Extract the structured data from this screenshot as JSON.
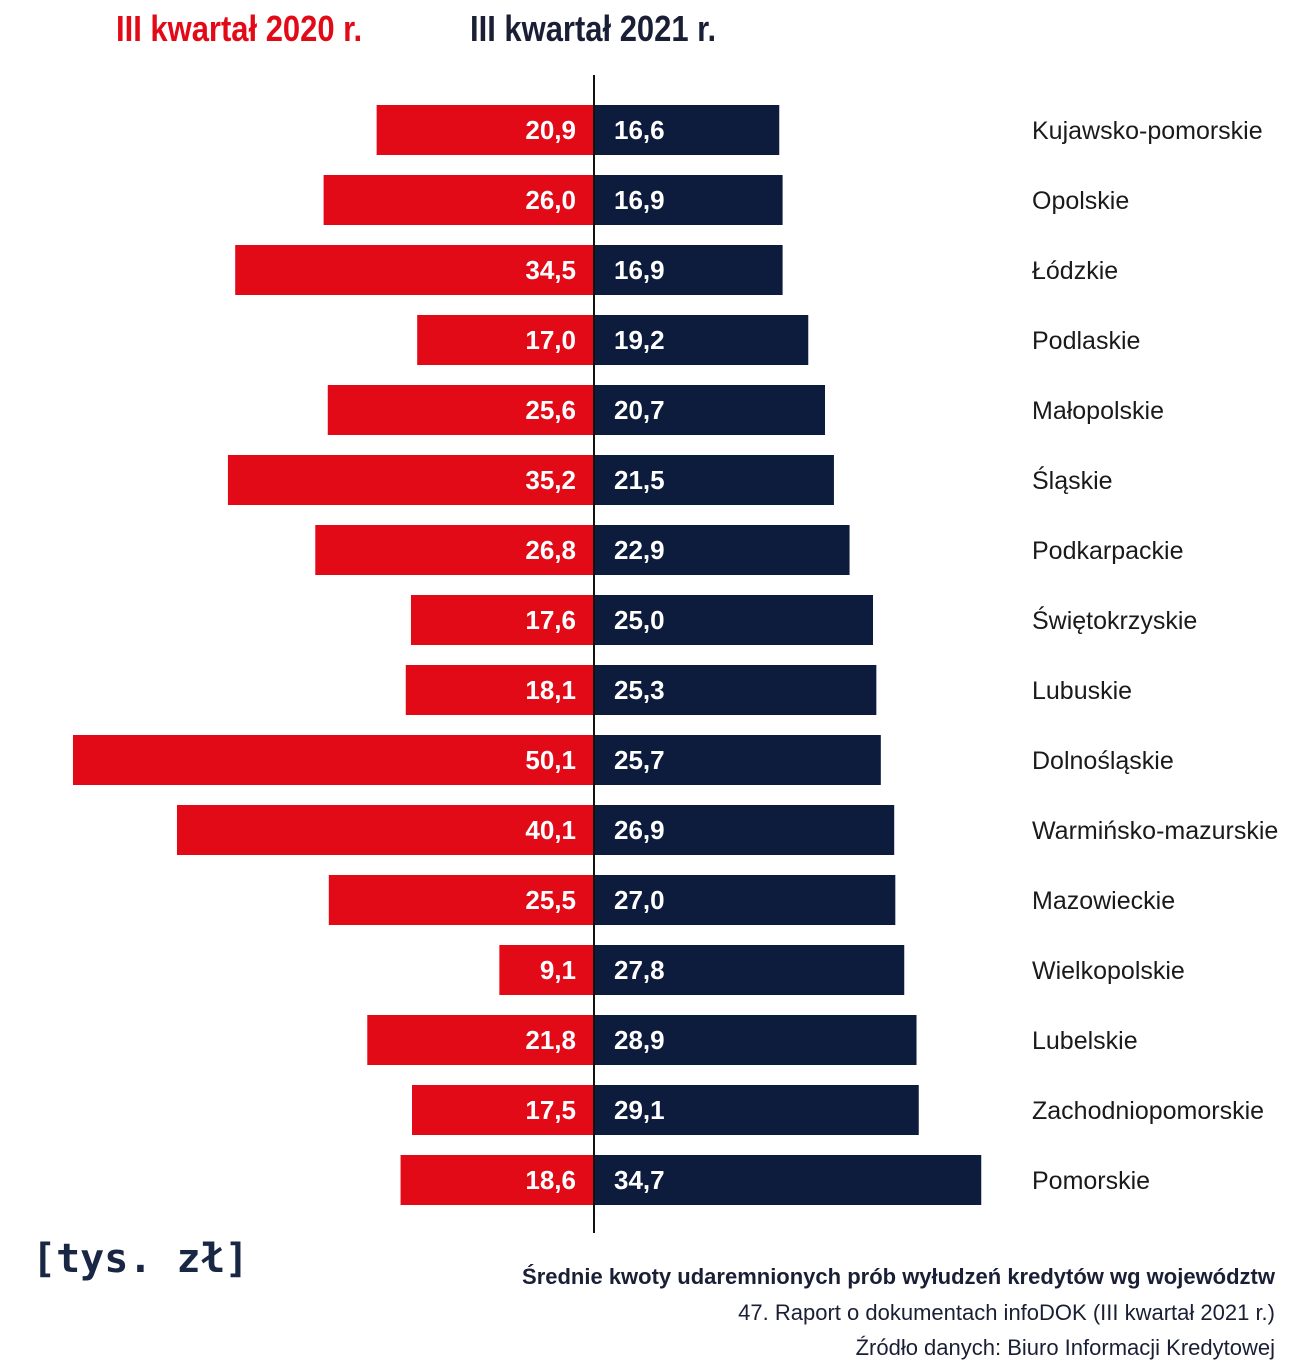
{
  "legend": {
    "left": {
      "label": "III kwartał 2020 r.",
      "color": "#e30a18"
    },
    "right": {
      "label": "III kwartał 2021 r.",
      "color": "#0d1c3d"
    }
  },
  "unit_label": "[tys. zł]",
  "footer": {
    "title": "Średnie kwoty udaremnionych prób wyłudzeń kredytów wg województw",
    "report": "47. Raport o dokumentach infoDOK (III kwartał 2021 r.)",
    "source": "Źródło danych: Biuro Informacji Kredytowej"
  },
  "chart_data": {
    "type": "bar",
    "orientation": "horizontal-butterfly",
    "categories": [
      "Kujawsko-pomorskie",
      "Opolskie",
      "Łódzkie",
      "Podlaskie",
      "Małopolskie",
      "Śląskie",
      "Podkarpackie",
      "Świętokrzyskie",
      "Lubuskie",
      "Dolnośląskie",
      "Warmińsko-mazurskie",
      "Mazowieckie",
      "Wielkopolskie",
      "Lubelskie",
      "Zachodniopomorskie",
      "Pomorskie"
    ],
    "series": [
      {
        "name": "III kwartał 2020 r.",
        "side": "left",
        "color": "#e30a18",
        "values": [
          20.9,
          26.0,
          34.5,
          17.0,
          25.6,
          35.2,
          26.8,
          17.6,
          18.1,
          50.1,
          40.1,
          25.5,
          9.1,
          21.8,
          17.5,
          18.6
        ],
        "labels": [
          "20,9",
          "26,0",
          "34,5",
          "17,0",
          "25,6",
          "35,2",
          "26,8",
          "17,6",
          "18,1",
          "50,1",
          "40,1",
          "25,5",
          "9,1",
          "21,8",
          "17,5",
          "18,6"
        ]
      },
      {
        "name": "III kwartał 2021 r.",
        "side": "right",
        "color": "#0d1c3d",
        "values": [
          16.6,
          16.9,
          16.9,
          19.2,
          20.7,
          21.5,
          22.9,
          25.0,
          25.3,
          25.7,
          26.9,
          27.0,
          27.8,
          28.9,
          29.1,
          34.7
        ],
        "labels": [
          "16,6",
          "16,9",
          "16,9",
          "19,2",
          "20,7",
          "21,5",
          "22,9",
          "25,0",
          "25,3",
          "25,7",
          "26,9",
          "27,0",
          "27,8",
          "28,9",
          "29,1",
          "34,7"
        ]
      }
    ],
    "unit": "tys. zł"
  }
}
